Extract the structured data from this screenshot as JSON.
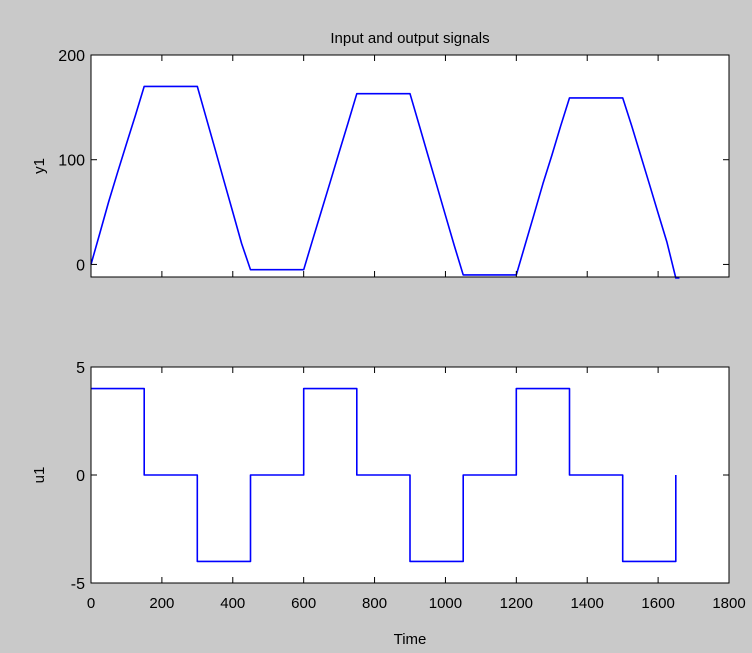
{
  "figure": {
    "title": "Input and output signals",
    "background": "#c9c9c9",
    "axes_background": "#ffffff",
    "line_color": "#0000ff"
  },
  "chart_data": [
    {
      "type": "line",
      "title": "Input and output signals",
      "ylabel": "y1",
      "xlabel": "",
      "xlim": [
        0,
        1800
      ],
      "ylim": [
        -12,
        200
      ],
      "x_ticks": [
        0,
        200,
        400,
        600,
        800,
        1000,
        1200,
        1400,
        1600,
        1800
      ],
      "x_tick_labels_visible": false,
      "y_ticks": [
        0,
        100,
        200
      ],
      "y_tick_labels": [
        "0",
        "100",
        "200"
      ],
      "grid": false,
      "series": [
        {
          "x": [
            0,
            25,
            50,
            75,
            100,
            125,
            150,
            300,
            325,
            350,
            375,
            400,
            425,
            450,
            600,
            625,
            650,
            675,
            700,
            725,
            750,
            900,
            925,
            950,
            975,
            1000,
            1025,
            1050,
            1200,
            1225,
            1250,
            1275,
            1300,
            1325,
            1350,
            1500,
            1525,
            1550,
            1575,
            1600,
            1625,
            1650,
            1660
          ],
          "y": [
            0,
            30,
            60,
            88,
            115,
            142,
            170,
            170,
            140,
            110,
            80,
            50,
            20,
            -5,
            -5,
            23,
            51,
            79,
            107,
            135,
            163,
            163,
            134,
            105,
            76,
            47,
            18,
            -10,
            -10,
            19,
            48,
            77,
            104,
            132,
            159,
            159,
            133,
            105,
            77,
            49,
            21,
            -13,
            -13
          ]
        }
      ]
    },
    {
      "type": "line",
      "title": "",
      "ylabel": "u1",
      "xlabel": "Time",
      "xlim": [
        0,
        1800
      ],
      "ylim": [
        -5,
        5
      ],
      "x_ticks": [
        0,
        200,
        400,
        600,
        800,
        1000,
        1200,
        1400,
        1600,
        1800
      ],
      "x_tick_labels": [
        "0",
        "200",
        "400",
        "600",
        "800",
        "1000",
        "1200",
        "1400",
        "1600",
        "1800"
      ],
      "y_ticks": [
        -5,
        0,
        5
      ],
      "y_tick_labels": [
        "-5",
        "0",
        "5"
      ],
      "grid": false,
      "series": [
        {
          "x": [
            0,
            150,
            150,
            300,
            300,
            450,
            450,
            600,
            600,
            750,
            750,
            900,
            900,
            1050,
            1050,
            1200,
            1200,
            1350,
            1350,
            1500,
            1500,
            1650,
            1650
          ],
          "y": [
            4,
            4,
            0,
            0,
            -4,
            -4,
            0,
            0,
            4,
            4,
            0,
            0,
            -4,
            -4,
            0,
            0,
            4,
            4,
            0,
            0,
            -4,
            -4,
            0
          ]
        }
      ]
    }
  ]
}
